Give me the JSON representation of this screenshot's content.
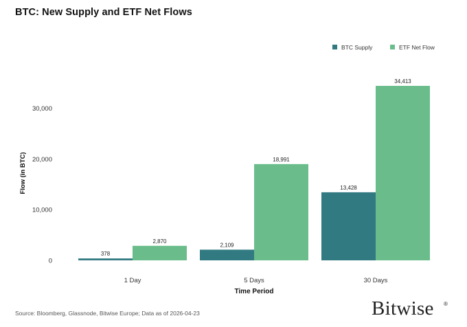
{
  "chart_data": {
    "type": "bar",
    "title": "BTC: New Supply and ETF Net Flows",
    "xlabel": "Time Period",
    "ylabel": "Flow (in BTC)",
    "categories": [
      "1 Day",
      "5 Days",
      "30 Days"
    ],
    "series": [
      {
        "name": "BTC Supply",
        "values": [
          378,
          2109,
          13428
        ],
        "labels": [
          "378",
          "2,109",
          "13,428"
        ],
        "color": "#327a82"
      },
      {
        "name": "ETF Net Flow",
        "values": [
          2870,
          18991,
          34413
        ],
        "labels": [
          "2,870",
          "18,991",
          "34,413"
        ],
        "color": "#6abd8b"
      }
    ],
    "yticks": [
      0,
      10000,
      20000,
      30000
    ],
    "ytick_labels": [
      "0",
      "10,000",
      "20,000",
      "30,000"
    ],
    "ylim": [
      0,
      36000
    ],
    "grid": false,
    "legend_position": "top-right"
  },
  "footer": {
    "source": "Source: Bloomberg, Glassnode, Bitwise Europe; Data as of 2026-04-23",
    "brand": "Bitwise",
    "brand_mark": "®"
  }
}
